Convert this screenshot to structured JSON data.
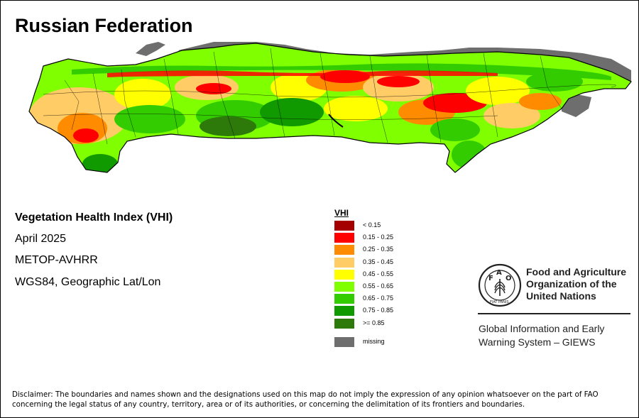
{
  "title": "Russian Federation",
  "map_info": {
    "index_name": "Vegetation Health Index (VHI)",
    "period": "April 2025",
    "sensor": "METOP-AVHRR",
    "projection": "WGS84, Geographic Lat/Lon"
  },
  "legend": {
    "title": "VHI",
    "classes": [
      {
        "label": "< 0.15",
        "color": "#a50000"
      },
      {
        "label": "0.15 - 0.25",
        "color": "#ff0000"
      },
      {
        "label": "0.25 - 0.35",
        "color": "#ff8c00"
      },
      {
        "label": "0.35 - 0.45",
        "color": "#ffcc66"
      },
      {
        "label": "0.45 - 0.55",
        "color": "#ffff00"
      },
      {
        "label": "0.55 - 0.65",
        "color": "#7fff00"
      },
      {
        "label": "0.65 - 0.75",
        "color": "#33cc00"
      },
      {
        "label": "0.75 - 0.85",
        "color": "#119900"
      },
      {
        "label": ">= 0.85",
        "color": "#2d7a0a"
      }
    ],
    "missing": {
      "label": "missing",
      "color": "#6e6e6e"
    }
  },
  "organization": {
    "logo_text": "FAO",
    "logo_motto": "FIAT PANIS",
    "name_line1": "Food and Agriculture",
    "name_line2": "Organization of the",
    "name_line3": "United Nations",
    "program_line1": "Global Information and Early",
    "program_line2": "Warning System – GIEWS"
  },
  "disclaimer": "Disclaimer: The boundaries and names shown and the designations used on this map do not imply the expression of any opinion whatsoever on the part of FAO concerning the legal status of any country, territory, area or of its authorities, or concerning the delimitation of its frontiers and boundaries."
}
